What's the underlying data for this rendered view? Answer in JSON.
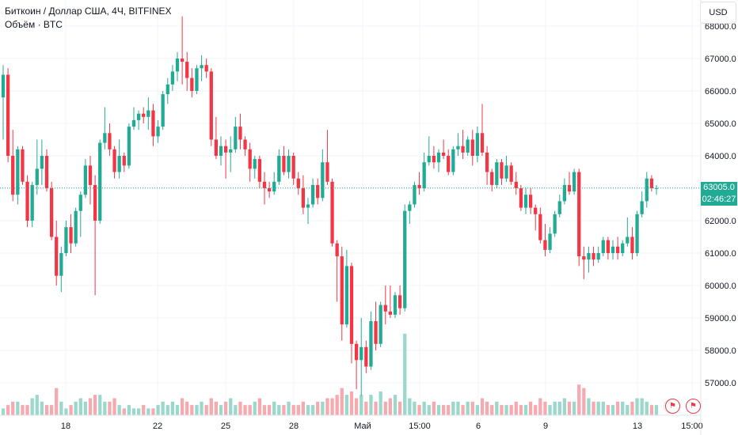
{
  "header": {
    "symbol_line": "Биткоин / Доллар США, 4Ч, BITFINEX",
    "volume_label": "Объём · BTC"
  },
  "toolbar": {
    "currency": "USD"
  },
  "price_badge": {
    "price": "63005.0",
    "countdown": "02:46:27"
  },
  "colors": {
    "up": "#22ab94",
    "down": "#f23645",
    "up_vol": "#9bd8cc",
    "down_vol": "#f7a9b0",
    "grid": "#f0f3fa",
    "axis": "#e0e3eb"
  },
  "events": [
    {
      "icon": "flash-icon"
    },
    {
      "icon": "flag-icon"
    },
    {
      "icon": "flag-icon"
    }
  ],
  "chart_data": {
    "type": "candlestick",
    "y_ticks": [
      "68000.0",
      "67000.0",
      "66000.0",
      "65000.0",
      "64000.0",
      "63000.0",
      "62000.0",
      "61000.0",
      "60000.0",
      "59000.0",
      "58000.0",
      "57000.0"
    ],
    "ylim": [
      56500,
      68500
    ],
    "x_ticks": [
      "18",
      "22",
      "25",
      "28",
      "Май",
      "15:00",
      "6",
      "9",
      "13",
      "15:00"
    ],
    "last_price": 63005,
    "candles": [
      [
        65800,
        66800,
        64500,
        66500,
        2
      ],
      [
        66500,
        66700,
        63800,
        64000,
        3
      ],
      [
        64000,
        64800,
        62600,
        62800,
        4
      ],
      [
        62800,
        64300,
        62500,
        64200,
        4
      ],
      [
        64200,
        64300,
        63100,
        63200,
        3
      ],
      [
        63200,
        63400,
        61800,
        62000,
        3
      ],
      [
        62000,
        63200,
        61800,
        63100,
        5
      ],
      [
        63100,
        64500,
        62800,
        63600,
        6
      ],
      [
        63600,
        64500,
        63100,
        64000,
        4
      ],
      [
        64000,
        64200,
        62900,
        63000,
        3
      ],
      [
        63000,
        63200,
        61400,
        61500,
        3
      ],
      [
        61500,
        62000,
        60000,
        60300,
        8
      ],
      [
        60300,
        61200,
        59800,
        61000,
        4
      ],
      [
        61000,
        62000,
        60900,
        61800,
        2
      ],
      [
        61800,
        62200,
        61000,
        61300,
        3
      ],
      [
        61300,
        62400,
        61200,
        62300,
        4
      ],
      [
        62300,
        62900,
        61500,
        62800,
        5
      ],
      [
        62800,
        63900,
        62700,
        63700,
        4
      ],
      [
        63700,
        64000,
        62500,
        63100,
        5
      ],
      [
        63100,
        63400,
        59700,
        62000,
        6
      ],
      [
        62000,
        64500,
        61900,
        64400,
        6
      ],
      [
        64400,
        65500,
        64200,
        64700,
        4
      ],
      [
        64700,
        65000,
        64000,
        64200,
        4
      ],
      [
        64200,
        64300,
        63300,
        63500,
        5
      ],
      [
        63500,
        64500,
        63300,
        64000,
        3
      ],
      [
        64000,
        64100,
        63500,
        63700,
        2
      ],
      [
        63700,
        65000,
        63600,
        64900,
        3
      ],
      [
        64900,
        65500,
        64800,
        65100,
        2
      ],
      [
        65100,
        65400,
        64800,
        65300,
        2
      ],
      [
        65300,
        65500,
        65000,
        65200,
        3
      ],
      [
        65200,
        65800,
        64800,
        65400,
        2
      ],
      [
        65400,
        65600,
        64300,
        64600,
        2
      ],
      [
        64600,
        65100,
        64400,
        64900,
        3
      ],
      [
        64900,
        66000,
        64800,
        65900,
        4
      ],
      [
        65900,
        66400,
        65600,
        66200,
        3
      ],
      [
        66200,
        66800,
        66000,
        66600,
        4
      ],
      [
        66600,
        67200,
        66300,
        67000,
        3
      ],
      [
        67000,
        68300,
        66200,
        66900,
        5
      ],
      [
        66900,
        67200,
        66000,
        66400,
        4
      ],
      [
        66400,
        66700,
        65800,
        66000,
        3
      ],
      [
        66000,
        66800,
        65900,
        66700,
        3
      ],
      [
        66700,
        67100,
        66300,
        66800,
        4
      ],
      [
        66800,
        67000,
        66400,
        66600,
        3
      ],
      [
        66600,
        66700,
        64300,
        64500,
        5
      ],
      [
        64500,
        65200,
        63900,
        64000,
        4
      ],
      [
        64000,
        64600,
        63700,
        64300,
        3
      ],
      [
        64300,
        64500,
        63300,
        64100,
        4
      ],
      [
        64100,
        64600,
        63500,
        64200,
        5
      ],
      [
        64200,
        65200,
        64100,
        64900,
        3
      ],
      [
        64900,
        65300,
        64200,
        64500,
        4
      ],
      [
        64500,
        64600,
        64000,
        64200,
        3
      ],
      [
        64200,
        64400,
        63200,
        63600,
        3
      ],
      [
        63600,
        64000,
        63300,
        63900,
        4
      ],
      [
        63900,
        64000,
        63000,
        63200,
        5
      ],
      [
        63200,
        63500,
        62500,
        63000,
        3
      ],
      [
        63000,
        63200,
        62700,
        62900,
        3
      ],
      [
        62900,
        63500,
        62800,
        63200,
        4
      ],
      [
        63200,
        64200,
        63100,
        64000,
        3
      ],
      [
        64000,
        64300,
        63400,
        63500,
        3
      ],
      [
        63500,
        64200,
        63300,
        64000,
        4
      ],
      [
        64000,
        64100,
        63100,
        63300,
        3
      ],
      [
        63300,
        63500,
        62800,
        63000,
        3
      ],
      [
        63000,
        63400,
        62200,
        62400,
        4
      ],
      [
        62400,
        62700,
        61900,
        62500,
        3
      ],
      [
        62500,
        63300,
        62400,
        63100,
        3
      ],
      [
        63100,
        63300,
        62500,
        62700,
        4
      ],
      [
        62700,
        64200,
        62600,
        63800,
        4
      ],
      [
        63800,
        64800,
        63100,
        63200,
        5
      ],
      [
        63200,
        63300,
        61200,
        61300,
        5
      ],
      [
        61300,
        61400,
        59500,
        60900,
        6
      ],
      [
        60900,
        61200,
        58300,
        58800,
        8
      ],
      [
        58800,
        61100,
        58700,
        60600,
        6
      ],
      [
        60600,
        60700,
        57600,
        58200,
        7
      ],
      [
        58200,
        58300,
        56800,
        57700,
        5
      ],
      [
        57700,
        59000,
        56600,
        58100,
        6
      ],
      [
        58100,
        58300,
        57300,
        57500,
        4
      ],
      [
        57500,
        59200,
        57400,
        58900,
        6
      ],
      [
        58900,
        59500,
        58000,
        58200,
        4
      ],
      [
        58200,
        59500,
        58100,
        59400,
        7
      ],
      [
        59400,
        60000,
        58800,
        59200,
        4
      ],
      [
        59200,
        60000,
        59000,
        59100,
        5
      ],
      [
        59100,
        59800,
        59000,
        59700,
        6
      ],
      [
        59700,
        60000,
        59100,
        59300,
        4
      ],
      [
        59300,
        62500,
        59200,
        62300,
        24
      ],
      [
        62300,
        62600,
        61900,
        62500,
        5
      ],
      [
        62500,
        63200,
        62400,
        63100,
        4
      ],
      [
        63100,
        63500,
        62800,
        63000,
        3
      ],
      [
        63000,
        64100,
        62900,
        63800,
        4
      ],
      [
        63800,
        64600,
        63700,
        64000,
        3
      ],
      [
        64000,
        64300,
        63600,
        63800,
        4
      ],
      [
        63800,
        64200,
        63500,
        64100,
        3
      ],
      [
        64100,
        64500,
        63900,
        64000,
        3
      ],
      [
        64000,
        64200,
        63400,
        63500,
        3
      ],
      [
        63500,
        64300,
        63400,
        64200,
        4
      ],
      [
        64200,
        64700,
        64000,
        64300,
        4
      ],
      [
        64300,
        64800,
        63900,
        64100,
        3
      ],
      [
        64100,
        64600,
        64000,
        64500,
        4
      ],
      [
        64500,
        64800,
        63700,
        64000,
        4
      ],
      [
        64000,
        64900,
        63800,
        64700,
        3
      ],
      [
        64700,
        65600,
        64000,
        64100,
        5
      ],
      [
        64100,
        64300,
        63100,
        63500,
        4
      ],
      [
        63500,
        63600,
        62900,
        63100,
        3
      ],
      [
        63100,
        63900,
        63000,
        63800,
        4
      ],
      [
        63800,
        63900,
        63100,
        63300,
        3
      ],
      [
        63300,
        64000,
        63200,
        63700,
        3
      ],
      [
        63700,
        63800,
        63100,
        63200,
        3
      ],
      [
        63200,
        63500,
        62800,
        63000,
        4
      ],
      [
        63000,
        63100,
        62300,
        62400,
        3
      ],
      [
        62400,
        63000,
        62200,
        62800,
        3
      ],
      [
        62800,
        63000,
        62200,
        62400,
        4
      ],
      [
        62400,
        62500,
        61700,
        62200,
        3
      ],
      [
        62200,
        62400,
        61300,
        61400,
        5
      ],
      [
        61400,
        61900,
        60900,
        61100,
        4
      ],
      [
        61100,
        61800,
        61000,
        61600,
        3
      ],
      [
        61600,
        62300,
        61500,
        62200,
        4
      ],
      [
        62200,
        62800,
        62100,
        62600,
        4
      ],
      [
        62600,
        63300,
        62500,
        63100,
        5
      ],
      [
        63100,
        63500,
        62800,
        62900,
        4
      ],
      [
        62900,
        63600,
        62800,
        63500,
        4
      ],
      [
        63500,
        63600,
        60600,
        60900,
        9
      ],
      [
        60900,
        61200,
        60200,
        60800,
        8
      ],
      [
        60800,
        61200,
        60400,
        61000,
        5
      ],
      [
        61000,
        61200,
        60600,
        60800,
        4
      ],
      [
        60800,
        61200,
        60700,
        61000,
        4
      ],
      [
        61000,
        61500,
        60900,
        61400,
        4
      ],
      [
        61400,
        61500,
        60800,
        61000,
        3
      ],
      [
        61000,
        61400,
        60800,
        61200,
        3
      ],
      [
        61200,
        61500,
        60800,
        61000,
        4
      ],
      [
        61000,
        61400,
        60900,
        61300,
        4
      ],
      [
        61300,
        62100,
        61200,
        61500,
        3
      ],
      [
        61500,
        61800,
        60800,
        61000,
        4
      ],
      [
        61000,
        62300,
        60900,
        62200,
        5
      ],
      [
        62200,
        62900,
        62100,
        62600,
        5
      ],
      [
        62600,
        63500,
        62400,
        63300,
        4
      ],
      [
        63300,
        63400,
        62900,
        63000,
        3
      ],
      [
        63000,
        63100,
        62800,
        63005,
        3
      ]
    ]
  }
}
